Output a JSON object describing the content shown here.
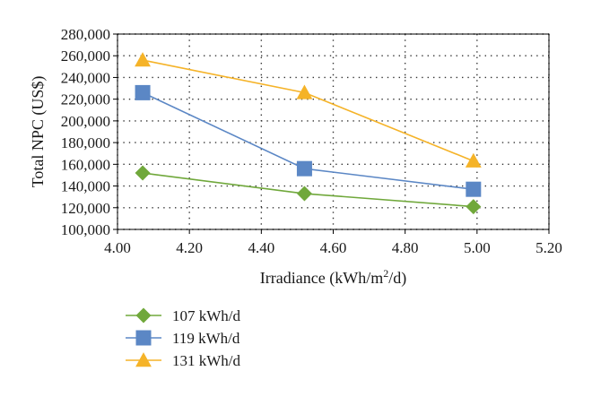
{
  "chart_data": {
    "type": "line",
    "title": "",
    "xlabel": "Irradiance (kWh/m",
    "xlabel_sup": "2",
    "xlabel_tail": "/d)",
    "ylabel": "Total NPC (US$)",
    "xlim": [
      4.0,
      5.2
    ],
    "ylim": [
      100000,
      280000
    ],
    "x_ticks": [
      "4.00",
      "4.20",
      "4.40",
      "4.60",
      "4.80",
      "5.00",
      "5.20"
    ],
    "y_ticks": [
      "100,000",
      "120,000",
      "140,000",
      "160,000",
      "180,000",
      "200,000",
      "220,000",
      "240,000",
      "260,000",
      "280,000"
    ],
    "grid": true,
    "legend_position": "bottom-left",
    "series": [
      {
        "name": "107 kWh/d",
        "color": "#70a83b",
        "marker": "diamond",
        "x": [
          4.07,
          4.52,
          4.99
        ],
        "y": [
          152000,
          133000,
          121000
        ]
      },
      {
        "name": "119 kWh/d",
        "color": "#5b87c5",
        "marker": "square",
        "x": [
          4.07,
          4.52,
          4.99
        ],
        "y": [
          226000,
          156000,
          137000
        ]
      },
      {
        "name": "131 kWh/d",
        "color": "#f5b328",
        "marker": "triangle",
        "x": [
          4.07,
          4.52,
          4.99
        ],
        "y": [
          256000,
          226000,
          163000
        ]
      }
    ]
  }
}
